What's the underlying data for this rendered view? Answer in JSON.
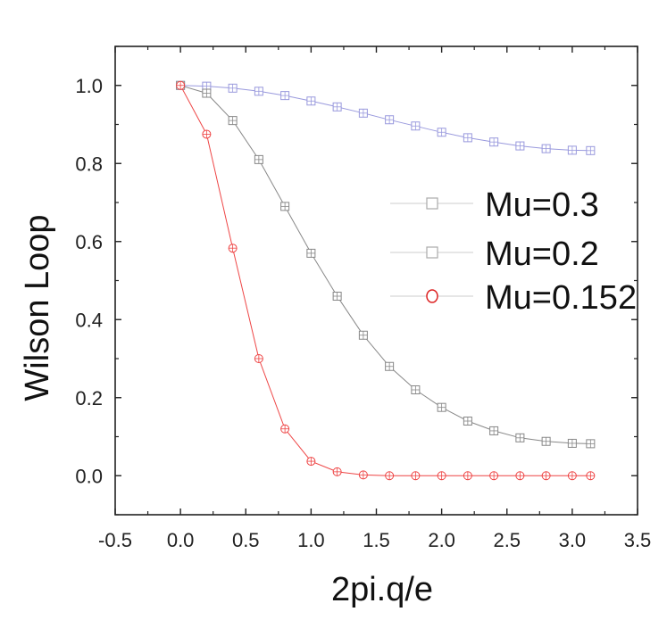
{
  "chart_data": {
    "type": "line",
    "title": "",
    "xlabel": "2pi.q/e",
    "ylabel": "Wilson Loop",
    "xlim": [
      -0.5,
      3.5
    ],
    "ylim": [
      -0.1,
      1.1
    ],
    "xticks": [
      -0.5,
      0.0,
      0.5,
      1.0,
      1.5,
      2.0,
      2.5,
      3.0,
      3.5
    ],
    "yticks": [
      0.0,
      0.2,
      0.4,
      0.6,
      0.8,
      1.0
    ],
    "xtick_labels": [
      "-0.5",
      "0.0",
      "0.5",
      "1.0",
      "1.5",
      "2.0",
      "2.5",
      "3.0",
      "3.5"
    ],
    "ytick_labels": [
      "0.0",
      "0.2",
      "0.4",
      "0.6",
      "0.8",
      "1.0"
    ],
    "grid": false,
    "legend_position": "right",
    "series": [
      {
        "name": "Mu=0.3",
        "marker": "square",
        "color": "#9999dd",
        "x": [
          0.0,
          0.2,
          0.4,
          0.6,
          0.8,
          1.0,
          1.2,
          1.4,
          1.6,
          1.8,
          2.0,
          2.2,
          2.4,
          2.6,
          2.8,
          3.0,
          3.14
        ],
        "y": [
          1.0,
          0.998,
          0.993,
          0.985,
          0.974,
          0.96,
          0.945,
          0.929,
          0.912,
          0.896,
          0.88,
          0.866,
          0.855,
          0.845,
          0.838,
          0.834,
          0.833
        ]
      },
      {
        "name": "Mu=0.2",
        "marker": "square",
        "color": "#888888",
        "x": [
          0.0,
          0.2,
          0.4,
          0.6,
          0.8,
          1.0,
          1.2,
          1.4,
          1.6,
          1.8,
          2.0,
          2.2,
          2.4,
          2.6,
          2.8,
          3.0,
          3.14
        ],
        "y": [
          1.0,
          0.98,
          0.91,
          0.81,
          0.69,
          0.57,
          0.46,
          0.36,
          0.28,
          0.22,
          0.175,
          0.14,
          0.115,
          0.097,
          0.088,
          0.083,
          0.082
        ]
      },
      {
        "name": "Mu=0.152",
        "marker": "circle",
        "color": "#ee4444",
        "x": [
          0.0,
          0.2,
          0.4,
          0.6,
          0.8,
          1.0,
          1.2,
          1.4,
          1.6,
          1.8,
          2.0,
          2.2,
          2.4,
          2.6,
          2.8,
          3.0,
          3.14
        ],
        "y": [
          1.0,
          0.875,
          0.583,
          0.3,
          0.12,
          0.037,
          0.01,
          0.002,
          0.0,
          0.0,
          0.0,
          0.0,
          0.0,
          0.0,
          0.0,
          0.0,
          0.0
        ]
      }
    ]
  }
}
